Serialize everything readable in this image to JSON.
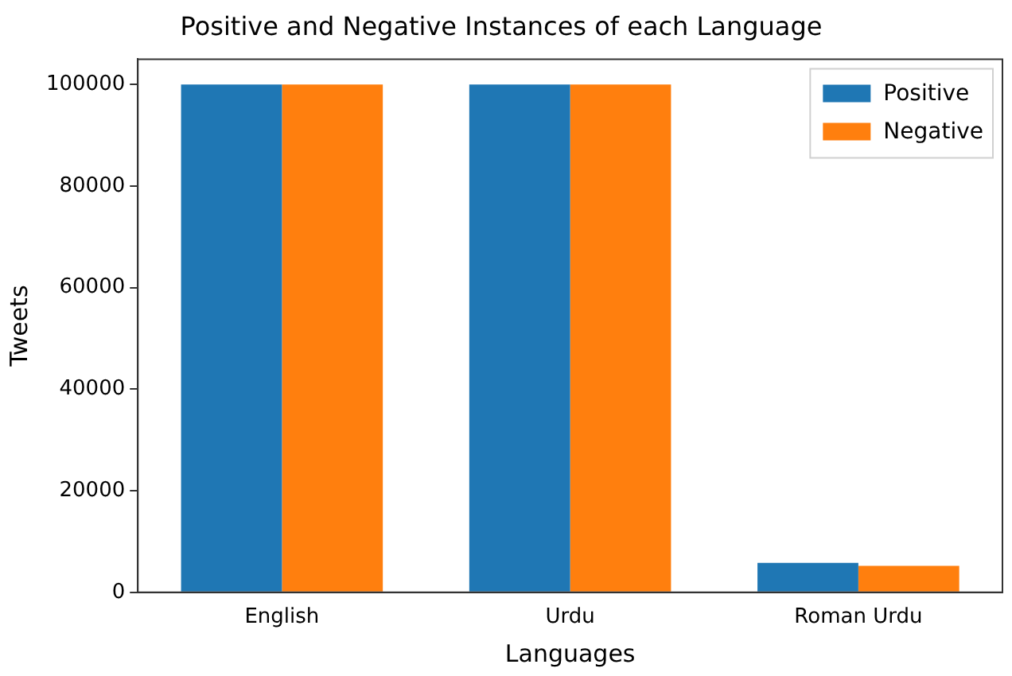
{
  "chart_data": {
    "type": "bar",
    "title": "Positive and Negative Instances of each Language",
    "xlabel": "Languages",
    "ylabel": "Tweets",
    "categories": [
      "English",
      "Urdu",
      "Roman Urdu"
    ],
    "series": [
      {
        "name": "Positive",
        "color": "#1f77b4",
        "values": [
          100000,
          100000,
          5800
        ]
      },
      {
        "name": "Negative",
        "color": "#ff7f0e",
        "values": [
          100000,
          100000,
          5200
        ]
      }
    ],
    "ylim": [
      0,
      105000
    ],
    "yticks": [
      0,
      20000,
      40000,
      60000,
      80000,
      100000
    ],
    "grid": false,
    "legend": "top right"
  }
}
